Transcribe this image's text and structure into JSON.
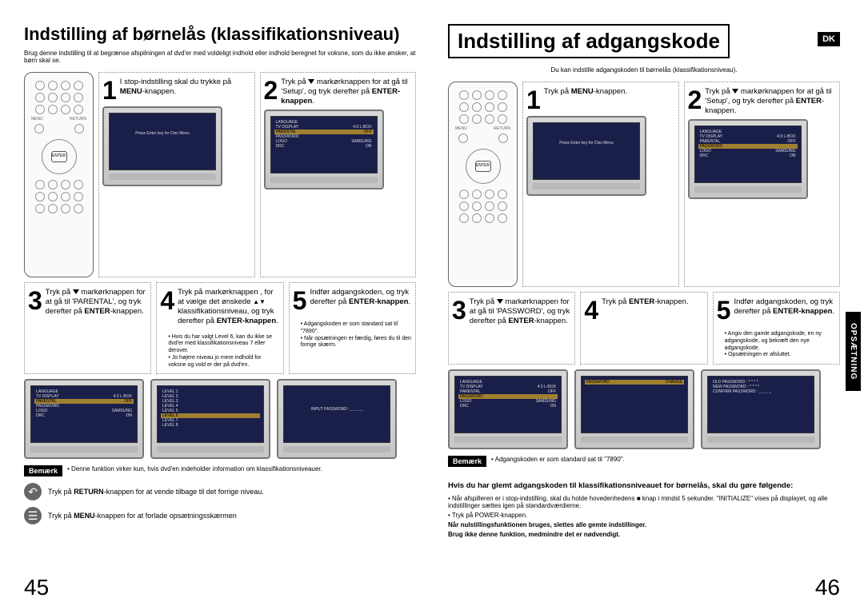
{
  "left": {
    "title": "Indstilling af børnelås (klassifikationsniveau)",
    "subtitle": "Brug denne indstilling til at begrænse afspilningen af dvd'er med voldeligt indhold eller indhold beregnet for voksne, som du ikke ønsker, at børn skal se.",
    "step1": "I stop-indstilling skal du trykke på MENU-knappen.",
    "step2": "Tryk på ▼ markørknappen for at gå til 'Setup', og tryk derefter på ENTER-knappen.",
    "step3": "Tryk på ▼ markørknappen for at gå til 'PARENTAL', og tryk derefter på ENTER-knappen.",
    "step4": "Tryk på markørknappen , for at vælge det ønskede ▲▼ klassifikationsniveau, og tryk derefter på ENTER-knappen.",
    "step4_notes": [
      "• Hvis du har valgt Level 6, kan du ikke se dvd'er med klassifikationsniveau 7 eller derover.",
      "• Jo højere niveau jo mere indhold for voksne og vold er der på dvd'en."
    ],
    "step5": "Indfør adgangskoden, og tryk derefter på ENTER-knappen.",
    "step5_notes": [
      "• Adgangskoden er som standard sat til \"7890\".",
      "• Når opsætningen er færdig, føres du til den forrige skærm."
    ],
    "remark_label": "Bemærk",
    "remark_text": "• Denne funktion virker kun, hvis dvd'en indeholder information om klassifikationsniveauer.",
    "tip1": "Tryk på RETURN-knappen for at vende tilbage til det forrige niveau.",
    "tip2": "Tryk på MENU-knappen for at forlade opsætningsskærmen",
    "page_num": "45",
    "tv_menu": {
      "lines": [
        {
          "l": "LANGUAGE",
          "r": ""
        },
        {
          "l": "TV DISPLAY",
          "r": "4:3 L-BOX"
        },
        {
          "l": "PARENTAL",
          "r": "OFF",
          "hl": true
        },
        {
          "l": "PASSWORD",
          "r": ""
        },
        {
          "l": "LOGO",
          "r": "SAMSUNG"
        },
        {
          "l": "DRC",
          "r": "ON"
        }
      ]
    },
    "tv_simple": "Press Enter key for Disc Menu",
    "tv_input": "INPUT PASSWORD : _ _ _ _"
  },
  "right": {
    "title": "Indstilling af adgangskode",
    "dk": "DK",
    "side_tab": "OPSÆTNING",
    "subtitle": "Du kan indstille adgangskoden til børnelås (klassifikationsniveau).",
    "step1": "Tryk på MENU-knappen.",
    "step2": "Tryk på ▼ markørknappen for at gå til 'Setup', og tryk derefter på ENTER-knappen.",
    "step3": "Tryk på ▼ markørknappen for at gå til 'PASSWORD', og tryk derefter på ENTER-knappen.",
    "step4": "Tryk på ENTER-knappen.",
    "step5": "Indfør adgangskoden, og tryk derefter på ENTER-knappen.",
    "step5_notes": [
      "• Angiv den gamle adgangskode, en ny adgangskode, og bekræft den nye adgangskode.",
      "• Opsætningen er afsluttet."
    ],
    "remark_label": "Bemærk",
    "remark_text": "• Adgangskoden er som standard sat til \"7890\".",
    "forgot_title": "Hvis du har glemt adgangskoden til klassifikationsniveauet for børnelås, skal du gøre følgende:",
    "forgot_items": [
      "• Når afspilleren er i stop-indstilling, skal du holde hovedenhedens ■ knap i mindst 5 sekunder. \"INITIALIZE\" vises på displayet, og alle indstillinger sættes igen på standardværdierne.",
      "• Tryk på POWER-knappen."
    ],
    "forgot_warn1": "Når nulstillingsfunktionen bruges, slettes alle gemte indstillinger.",
    "forgot_warn2": "Brug ikke denne funktion, medmindre det er nødvendigt.",
    "page_num": "46",
    "tv_menu": {
      "lines": [
        {
          "l": "LANGUAGE",
          "r": ""
        },
        {
          "l": "TV DISPLAY",
          "r": "4:3 L-BOX"
        },
        {
          "l": "PARENTAL",
          "r": "OFF"
        },
        {
          "l": "PASSWORD",
          "r": "",
          "hl": true
        },
        {
          "l": "LOGO",
          "r": "SAMSUNG"
        },
        {
          "l": "DRC",
          "r": "ON"
        }
      ]
    },
    "tv_pw": {
      "lines": [
        {
          "l": "PASSWORD",
          "r": "CHANGE",
          "hl": true
        }
      ]
    },
    "tv_change": [
      "OLD PASSWORD : * * * *",
      "NEW PASSWORD : * * * *",
      "CONFIRM PASSWORD : _ _ _ _"
    ],
    "tv_simple": "Press Enter key for Disc Menu"
  },
  "remote": {
    "enter": "ENTER",
    "menu": "MENU",
    "return": "RETURN"
  },
  "colors": {
    "screen_bg": "#1a1f4a",
    "highlight": "#a08030",
    "border": "#888888"
  }
}
